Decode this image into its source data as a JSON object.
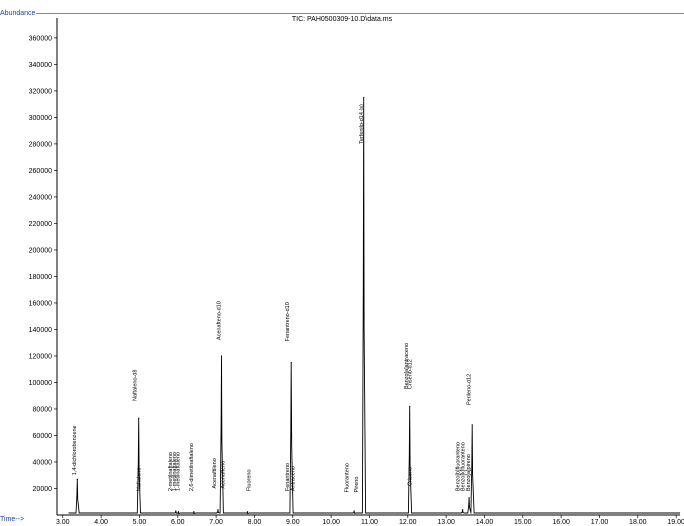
{
  "chart_data": {
    "type": "line",
    "title": "TIC: PAH0500309-10.D\\data.ms",
    "ylabel": "Abundance",
    "xlabel": "Time-->",
    "xlim": [
      2.85,
      19.1
    ],
    "ylim": [
      0,
      375000
    ],
    "grid": false,
    "yticks": [
      20000,
      40000,
      60000,
      80000,
      100000,
      120000,
      140000,
      160000,
      180000,
      200000,
      220000,
      240000,
      260000,
      280000,
      300000,
      320000,
      340000,
      360000
    ],
    "ytick_labels": [
      "20000",
      "40000",
      "60000",
      "80000",
      "100000",
      "120000",
      "140000",
      "160000",
      "180000",
      "200000",
      "220000",
      "240000",
      "260000",
      "280000",
      "300000",
      "320000",
      "340000",
      "360000"
    ],
    "xticks": [
      3,
      4,
      5,
      6,
      7,
      8,
      9,
      10,
      11,
      12,
      13,
      14,
      15,
      16,
      17,
      18,
      19
    ],
    "xtick_labels": [
      "3.00",
      "4.00",
      "5.00",
      "6.00",
      "7.00",
      "8.00",
      "9.00",
      "10.00",
      "11.00",
      "12.00",
      "13.00",
      "14.00",
      "15.00",
      "16.00",
      "17.00",
      "18.00",
      "19.00"
    ],
    "baseline": 1500,
    "series": [
      {
        "peaks": [
          {
            "x": 3.38,
            "y": 27000
          },
          {
            "x": 4.98,
            "y": 73000
          },
          {
            "x": 5.95,
            "y": 3000
          },
          {
            "x": 6.02,
            "y": 2500
          },
          {
            "x": 6.42,
            "y": 2500
          },
          {
            "x": 7.05,
            "y": 4000
          },
          {
            "x": 7.14,
            "y": 120000
          },
          {
            "x": 7.82,
            "y": 2500
          },
          {
            "x": 8.96,
            "y": 115000
          },
          {
            "x": 10.6,
            "y": 3000
          },
          {
            "x": 10.85,
            "y": 315000
          },
          {
            "x": 12.05,
            "y": 82000
          },
          {
            "x": 13.43,
            "y": 4000
          },
          {
            "x": 13.6,
            "y": 13000
          },
          {
            "x": 13.68,
            "y": 68000
          }
        ]
      }
    ],
    "peak_labels": [
      {
        "text": "1,4-dichlorobenzene",
        "x": 3.35,
        "y": 30000
      },
      {
        "text": "Naftaleno-d8",
        "x": 4.93,
        "y": 86000
      },
      {
        "text": "Naftaleno",
        "x": 5.03,
        "y": 18000
      },
      {
        "text": "2-metilnaftaleno",
        "x": 5.85,
        "y": 18000
      },
      {
        "text": "1-metilnaftaleno",
        "x": 5.95,
        "y": 18000
      },
      {
        "text": "1-metilnaftaleno",
        "x": 6.05,
        "y": 18000
      },
      {
        "text": "2,6-dimetilnaftaleno",
        "x": 6.4,
        "y": 18000
      },
      {
        "text": "Acenaftileno",
        "x": 7.0,
        "y": 20000
      },
      {
        "text": "Acenafteno",
        "x": 7.22,
        "y": 20000
      },
      {
        "text": "Acenafteno-d10",
        "x": 7.12,
        "y": 132000
      },
      {
        "text": "Fluoreno",
        "x": 7.9,
        "y": 18000
      },
      {
        "text": "Fenantreno",
        "x": 8.9,
        "y": 18000
      },
      {
        "text": "Fenantreno-d10",
        "x": 8.9,
        "y": 131000
      },
      {
        "text": "Antraceno",
        "x": 9.05,
        "y": 18000
      },
      {
        "text": "Fluoranteno",
        "x": 10.45,
        "y": 17000
      },
      {
        "text": "Pireno",
        "x": 10.7,
        "y": 17000
      },
      {
        "text": "Terfenilo-d14 (s)",
        "x": 10.83,
        "y": 280000
      },
      {
        "text": "Benzo[a]antraceno",
        "x": 12.0,
        "y": 95000
      },
      {
        "text": "Criseno-d12",
        "x": 12.1,
        "y": 95000
      },
      {
        "text": "Criseno",
        "x": 12.1,
        "y": 22000
      },
      {
        "text": "Benzo[b]fluoranteno",
        "x": 13.35,
        "y": 18000
      },
      {
        "text": "Benzo[k]fluoranteno",
        "x": 13.48,
        "y": 18000
      },
      {
        "text": "Benzo[a]pireno",
        "x": 13.62,
        "y": 18000
      },
      {
        "text": "Perileno-d12",
        "x": 13.64,
        "y": 83000
      }
    ]
  }
}
